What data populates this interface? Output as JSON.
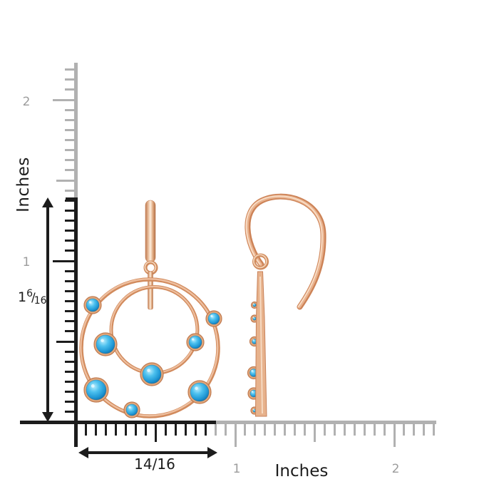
{
  "colors": {
    "ink": "#1c1c1c",
    "ruler_gray": "#b1b1b1",
    "label_gray": "#9c9c9c",
    "metal": "#e2a87c",
    "metal_light": "#fdeedd",
    "metal_dark": "#bf7a50",
    "gem": "#2ba7e0",
    "gem_dark": "#0b629c",
    "gem_light": "#b9ecfc"
  },
  "vertical_ruler": {
    "unit_label": "Inches",
    "mark_2": "2",
    "mark_1": "1"
  },
  "horizontal_ruler": {
    "unit_label": "Inches",
    "mark_1": "1",
    "mark_2": "2"
  },
  "measurements": {
    "height": {
      "whole": "1",
      "numerator": "6",
      "slash": "/",
      "denominator": "16"
    },
    "width": {
      "value": "14/16"
    }
  }
}
